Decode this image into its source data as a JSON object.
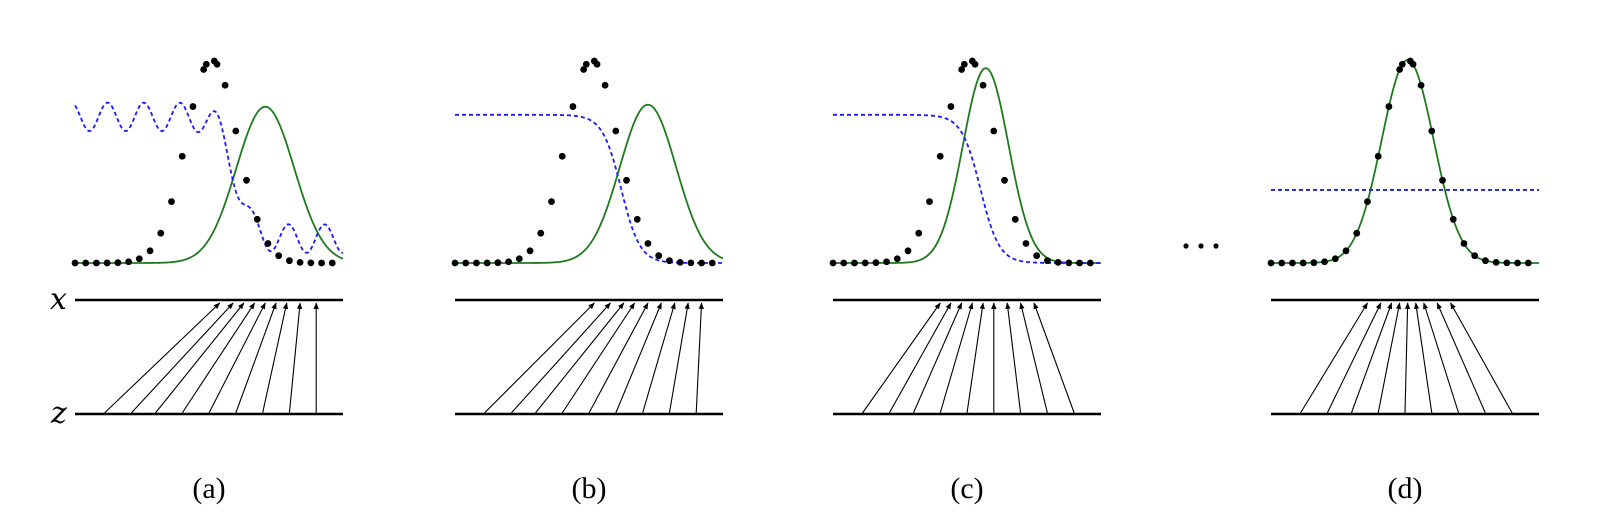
{
  "axis_labels": {
    "x": "x",
    "z": "z"
  },
  "ellipsis": "...",
  "panels": [
    {
      "label": "(a)",
      "gen_mu": 0.71,
      "gen_sigma": 0.108,
      "gen_peak": 0.77,
      "disc": "wavy",
      "arrows_z": [
        0.11,
        0.21,
        0.3,
        0.4,
        0.5,
        0.6,
        0.7,
        0.8,
        0.9
      ],
      "arrows_x": [
        0.54,
        0.59,
        0.63,
        0.67,
        0.71,
        0.75,
        0.79,
        0.84,
        0.9
      ]
    },
    {
      "label": "(b)",
      "gen_mu": 0.72,
      "gen_sigma": 0.105,
      "gen_peak": 0.78,
      "disc": "sigmoid",
      "disc_center": 0.62,
      "disc_high": 0.73,
      "arrows_z": [
        0.11,
        0.21,
        0.3,
        0.4,
        0.5,
        0.6,
        0.7,
        0.8,
        0.9
      ],
      "arrows_x": [
        0.52,
        0.58,
        0.63,
        0.67,
        0.72,
        0.77,
        0.82,
        0.87,
        0.92
      ]
    },
    {
      "label": "(c)",
      "gen_mu": 0.57,
      "gen_sigma": 0.085,
      "gen_peak": 0.96,
      "disc": "sigmoid",
      "disc_center": 0.55,
      "disc_high": 0.73,
      "arrows_z": [
        0.11,
        0.21,
        0.3,
        0.4,
        0.5,
        0.6,
        0.7,
        0.8,
        0.9
      ],
      "arrows_x": [
        0.4,
        0.44,
        0.48,
        0.52,
        0.56,
        0.6,
        0.65,
        0.7,
        0.75
      ]
    },
    {
      "label": "(d)",
      "gen_mu": 0.51,
      "gen_sigma": 0.097,
      "gen_peak": 1.0,
      "disc": "flat",
      "disc_level": 0.36,
      "arrows_z": [
        0.11,
        0.21,
        0.3,
        0.4,
        0.5,
        0.6,
        0.7,
        0.8,
        0.9
      ],
      "arrows_x": [
        0.36,
        0.41,
        0.45,
        0.48,
        0.51,
        0.54,
        0.57,
        0.62,
        0.67
      ]
    }
  ],
  "data_distribution": {
    "mu": 0.51,
    "sigma": 0.097,
    "peak": 1.0
  }
}
